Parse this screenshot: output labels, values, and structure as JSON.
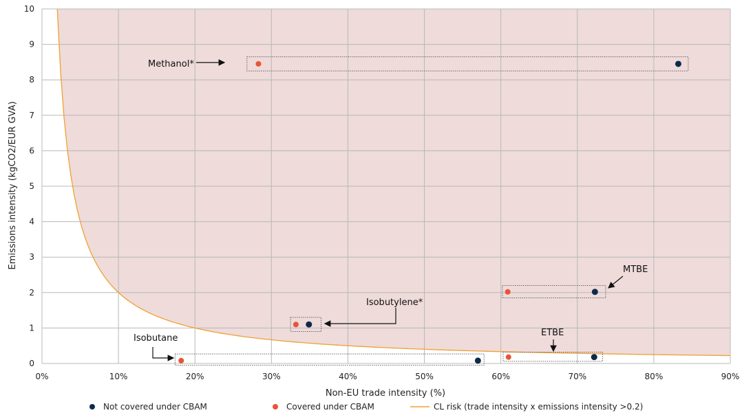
{
  "chart_data": {
    "type": "scatter",
    "xlabel": "Non-EU trade intensity (%)",
    "ylabel": "Emissions intensity (kgCO2/EUR GVA)",
    "xlim": [
      0,
      90
    ],
    "ylim": [
      0,
      10
    ],
    "x_ticks": [
      "0%",
      "10%",
      "20%",
      "30%",
      "40%",
      "50%",
      "60%",
      "70%",
      "80%",
      "90%"
    ],
    "y_ticks": [
      "0",
      "1",
      "2",
      "3",
      "4",
      "5",
      "6",
      "7",
      "8",
      "9",
      "10"
    ],
    "grid": true,
    "legend_position": "bottom",
    "risk_area_label": "CL risk (trade intensity x emissions intensity >0.2)",
    "risk_threshold": 0.2,
    "series": [
      {
        "name": "Not covered under CBAM",
        "color": "#0d2a4a",
        "points": [
          {
            "label": "Methanol*",
            "x": 83.2,
            "y": 8.45
          },
          {
            "label": "MTBE",
            "x": 72.3,
            "y": 2.02
          },
          {
            "label": "Isobutylene*",
            "x": 34.9,
            "y": 1.1
          },
          {
            "label": "ETBE",
            "x": 72.2,
            "y": 0.18
          },
          {
            "label": "Isobutane",
            "x": 57.0,
            "y": 0.08
          }
        ]
      },
      {
        "name": "Covered under CBAM",
        "color": "#e8533a",
        "points": [
          {
            "label": "Methanol*",
            "x": 28.3,
            "y": 8.45
          },
          {
            "label": "MTBE",
            "x": 60.9,
            "y": 2.02
          },
          {
            "label": "Isobutylene*",
            "x": 33.2,
            "y": 1.1
          },
          {
            "label": "ETBE",
            "x": 61.0,
            "y": 0.18
          },
          {
            "label": "Isobutane",
            "x": 18.2,
            "y": 0.08
          }
        ]
      }
    ],
    "groups": [
      {
        "label": "Methanol*",
        "x_range": [
          26.8,
          84.5
        ],
        "y_range": [
          8.25,
          8.65
        ]
      },
      {
        "label": "MTBE",
        "x_range": [
          60.2,
          73.7
        ],
        "y_range": [
          1.85,
          2.2
        ]
      },
      {
        "label": "Isobutylene*",
        "x_range": [
          32.5,
          36.5
        ],
        "y_range": [
          0.9,
          1.3
        ]
      },
      {
        "label": "ETBE",
        "x_range": [
          60.3,
          73.3
        ],
        "y_range": [
          0.06,
          0.32
        ]
      },
      {
        "label": "Isobutane",
        "x_range": [
          17.4,
          57.8
        ],
        "y_range": [
          -0.05,
          0.27
        ]
      }
    ],
    "colors": {
      "risk_fill": "#eedbda",
      "risk_line": "#f0a030",
      "grid": "#b8b8b8"
    }
  }
}
